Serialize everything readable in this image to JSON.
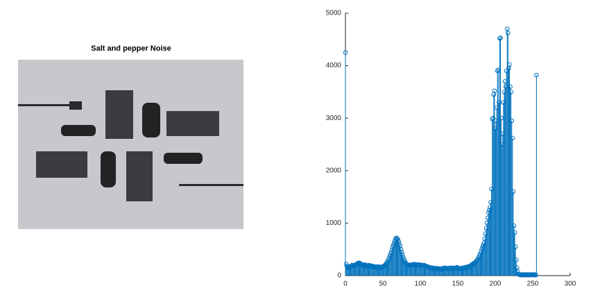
{
  "image_title": "Salt and pepper Noise",
  "chart_data": {
    "type": "stem",
    "color": "#0072bd",
    "x": [
      0,
      1,
      2,
      3,
      4,
      5,
      6,
      7,
      8,
      9,
      10,
      11,
      12,
      13,
      14,
      15,
      16,
      17,
      18,
      19,
      20,
      21,
      22,
      23,
      24,
      25,
      26,
      27,
      28,
      29,
      30,
      31,
      32,
      33,
      34,
      35,
      36,
      37,
      38,
      39,
      40,
      41,
      42,
      43,
      44,
      45,
      46,
      47,
      48,
      49,
      50,
      51,
      52,
      53,
      54,
      55,
      56,
      57,
      58,
      59,
      60,
      61,
      62,
      63,
      64,
      65,
      66,
      67,
      68,
      69,
      70,
      71,
      72,
      73,
      74,
      75,
      76,
      77,
      78,
      79,
      80,
      81,
      82,
      83,
      84,
      85,
      86,
      87,
      88,
      89,
      90,
      91,
      92,
      93,
      94,
      95,
      96,
      97,
      98,
      99,
      100,
      101,
      102,
      103,
      104,
      105,
      106,
      107,
      108,
      109,
      110,
      111,
      112,
      113,
      114,
      115,
      116,
      117,
      118,
      119,
      120,
      121,
      122,
      123,
      124,
      125,
      126,
      127,
      128,
      129,
      130,
      131,
      132,
      133,
      134,
      135,
      136,
      137,
      138,
      139,
      140,
      141,
      142,
      143,
      144,
      145,
      146,
      147,
      148,
      149,
      150,
      151,
      152,
      153,
      154,
      155,
      156,
      157,
      158,
      159,
      160,
      161,
      162,
      163,
      164,
      165,
      166,
      167,
      168,
      169,
      170,
      171,
      172,
      173,
      174,
      175,
      176,
      177,
      178,
      179,
      180,
      181,
      182,
      183,
      184,
      185,
      186,
      187,
      188,
      189,
      190,
      191,
      192,
      193,
      194,
      195,
      196,
      197,
      198,
      199,
      200,
      201,
      202,
      203,
      204,
      205,
      206,
      207,
      208,
      209,
      210,
      211,
      212,
      213,
      214,
      215,
      216,
      217,
      218,
      219,
      220,
      221,
      222,
      223,
      224,
      225,
      226,
      227,
      228,
      229,
      230,
      231,
      232,
      233,
      234,
      235,
      236,
      237,
      238,
      239,
      240,
      241,
      242,
      243,
      244,
      245,
      246,
      247,
      248,
      249,
      250,
      251,
      252,
      253,
      254,
      255
    ],
    "values": [
      4250,
      220,
      180,
      160,
      170,
      150,
      170,
      180,
      190,
      200,
      200,
      180,
      190,
      200,
      210,
      220,
      230,
      240,
      230,
      240,
      230,
      220,
      210,
      200,
      190,
      200,
      210,
      200,
      190,
      180,
      190,
      200,
      190,
      180,
      190,
      180,
      170,
      180,
      170,
      160,
      170,
      170,
      160,
      170,
      160,
      170,
      160,
      150,
      160,
      170,
      170,
      180,
      190,
      200,
      220,
      240,
      260,
      290,
      320,
      360,
      400,
      440,
      490,
      540,
      580,
      620,
      660,
      700,
      720,
      700,
      690,
      650,
      600,
      560,
      500,
      450,
      400,
      350,
      310,
      280,
      250,
      230,
      220,
      210,
      200,
      190,
      190,
      200,
      210,
      210,
      200,
      210,
      220,
      210,
      200,
      210,
      200,
      210,
      200,
      210,
      200,
      200,
      190,
      200,
      190,
      200,
      190,
      180,
      180,
      170,
      170,
      160,
      160,
      150,
      150,
      140,
      150,
      140,
      140,
      130,
      140,
      130,
      130,
      140,
      130,
      130,
      120,
      130,
      120,
      130,
      140,
      130,
      140,
      150,
      140,
      130,
      130,
      140,
      130,
      140,
      150,
      140,
      130,
      140,
      150,
      140,
      130,
      140,
      150,
      160,
      150,
      140,
      140,
      130,
      140,
      130,
      140,
      150,
      140,
      150,
      160,
      150,
      160,
      170,
      160,
      170,
      180,
      190,
      200,
      210,
      220,
      230,
      240,
      250,
      260,
      280,
      300,
      320,
      350,
      380,
      410,
      450,
      500,
      540,
      580,
      620,
      700,
      800,
      900,
      1000,
      1100,
      1200,
      1250,
      1300,
      1400,
      1650,
      2980,
      3000,
      3450,
      3520,
      2800,
      2950,
      3200,
      3900,
      3920,
      3300,
      4520,
      4530,
      3000,
      2500,
      2700,
      3300,
      3500,
      3700,
      3600,
      3900,
      4700,
      4620,
      3950,
      4020,
      3600,
      3500,
      2950,
      2620,
      1600,
      950,
      820,
      550,
      300,
      150,
      80,
      30,
      20,
      20,
      10,
      20,
      20,
      10,
      20,
      20,
      20,
      10,
      20,
      20,
      10,
      20,
      20,
      10,
      20,
      20,
      20,
      10,
      20,
      20,
      10,
      3820
    ],
    "xlim": [
      0,
      300
    ],
    "xticks": [
      0,
      50,
      100,
      150,
      200,
      250,
      300
    ],
    "ylim": [
      0,
      5000
    ],
    "yticks": [
      0,
      1000,
      2000,
      3000,
      4000,
      5000
    ]
  }
}
